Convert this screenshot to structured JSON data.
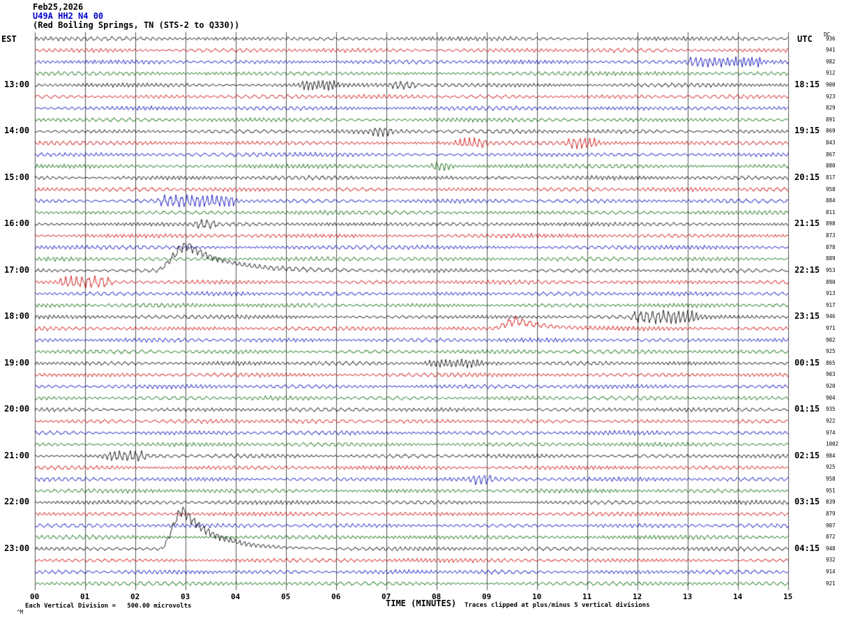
{
  "header": {
    "date": "Feb25,2026",
    "station": "U49A HH2 N4 00",
    "location": "(Red Boiling Springs, TN (STS-2 to Q330))"
  },
  "axes": {
    "left_label": "EST",
    "right_label": "UTC",
    "dc_label": "DC",
    "x_title": "TIME (MINUTES)"
  },
  "footer": {
    "scale_note": "Each Vertical Division =   500.00 microvolts",
    "clip_note": "Traces clipped at plus/minus 5 vertical divisions",
    "corner_mark": "^M"
  },
  "colors": {
    "trace_cycle": [
      "#000000",
      "#cc0000",
      "#0000bb",
      "#006600"
    ],
    "grid": "#555555",
    "station_accent": "#0000cc"
  },
  "chart_data": {
    "type": "line",
    "subtype": "helicorder-seismogram",
    "title": "U49A HH2 N4 00 (Red Boiling Springs, TN (STS-2 to Q330))",
    "xlabel": "TIME (MINUTES)",
    "x_range_minutes": [
      0,
      15
    ],
    "x_ticks": [
      "00",
      "01",
      "02",
      "03",
      "04",
      "05",
      "06",
      "07",
      "08",
      "09",
      "10",
      "11",
      "12",
      "13",
      "14",
      "15"
    ],
    "row_count": 48,
    "minutes_per_row": 15,
    "trace_color_cycle": [
      "#000000",
      "#cc0000",
      "#0000bb",
      "#006600"
    ],
    "left_time_labels_est": [
      {
        "row": 4,
        "text": "13:00"
      },
      {
        "row": 8,
        "text": "14:00"
      },
      {
        "row": 12,
        "text": "15:00"
      },
      {
        "row": 16,
        "text": "16:00"
      },
      {
        "row": 20,
        "text": "17:00"
      },
      {
        "row": 24,
        "text": "18:00"
      },
      {
        "row": 28,
        "text": "19:00"
      },
      {
        "row": 32,
        "text": "20:00"
      },
      {
        "row": 36,
        "text": "21:00"
      },
      {
        "row": 40,
        "text": "22:00"
      },
      {
        "row": 44,
        "text": "23:00"
      }
    ],
    "right_time_labels_utc": [
      {
        "row": 4,
        "text": "18:15"
      },
      {
        "row": 8,
        "text": "19:15"
      },
      {
        "row": 12,
        "text": "20:15"
      },
      {
        "row": 16,
        "text": "21:15"
      },
      {
        "row": 20,
        "text": "22:15"
      },
      {
        "row": 24,
        "text": "23:15"
      },
      {
        "row": 28,
        "text": "00:15"
      },
      {
        "row": 32,
        "text": "01:15"
      },
      {
        "row": 36,
        "text": "02:15"
      },
      {
        "row": 40,
        "text": "03:15"
      },
      {
        "row": 44,
        "text": "04:15"
      }
    ],
    "dc_offsets": [
      936,
      941,
      982,
      912,
      900,
      923,
      829,
      891,
      869,
      843,
      867,
      880,
      817,
      958,
      884,
      811,
      898,
      873,
      878,
      889,
      953,
      890,
      913,
      917,
      946,
      971,
      902,
      925,
      865,
      903,
      920,
      904,
      935,
      922,
      974,
      1002,
      984,
      925,
      958,
      951,
      839,
      879,
      907,
      872,
      948,
      932,
      914,
      921
    ],
    "scale": "Each Vertical Division = 500.00 microvolts",
    "clipping": "Traces clipped at plus/minus 5 vertical divisions",
    "events": [
      {
        "row": 2,
        "type": "burst",
        "start": 12.9,
        "end": 14.6,
        "amp": 4.5
      },
      {
        "row": 4,
        "type": "burst",
        "start": 5.2,
        "end": 6.1,
        "amp": 4
      },
      {
        "row": 4,
        "type": "burst",
        "start": 7.0,
        "end": 7.7,
        "amp": 3.5
      },
      {
        "row": 8,
        "type": "burst",
        "start": 6.6,
        "end": 7.2,
        "amp": 3.5
      },
      {
        "row": 9,
        "type": "burst",
        "start": 8.3,
        "end": 9.1,
        "amp": 4
      },
      {
        "row": 9,
        "type": "burst",
        "start": 10.5,
        "end": 11.3,
        "amp": 4.5
      },
      {
        "row": 11,
        "type": "burst",
        "start": 7.8,
        "end": 8.4,
        "amp": 4
      },
      {
        "row": 14,
        "type": "burst",
        "start": 2.4,
        "end": 4.1,
        "amp": 5
      },
      {
        "row": 16,
        "type": "burst",
        "start": 3.1,
        "end": 3.7,
        "amp": 3.5
      },
      {
        "row": 20,
        "type": "spike",
        "start": 2.4,
        "peak": 3.05,
        "end": 5.3,
        "amp": 36
      },
      {
        "row": 21,
        "type": "burst",
        "start": 0.4,
        "end": 1.6,
        "amp": 5
      },
      {
        "row": 24,
        "type": "burst",
        "start": 11.8,
        "end": 13.3,
        "amp": 5.5
      },
      {
        "row": 25,
        "type": "spike",
        "start": 9.1,
        "peak": 9.6,
        "end": 11.2,
        "amp": 11
      },
      {
        "row": 28,
        "type": "burst",
        "start": 7.7,
        "end": 9.0,
        "amp": 3
      },
      {
        "row": 36,
        "type": "burst",
        "start": 1.3,
        "end": 2.3,
        "amp": 4
      },
      {
        "row": 38,
        "type": "burst",
        "start": 8.6,
        "end": 9.2,
        "amp": 4
      },
      {
        "row": 44,
        "type": "spike",
        "start": 2.5,
        "peak": 2.95,
        "end": 4.8,
        "amp": 55
      }
    ]
  }
}
